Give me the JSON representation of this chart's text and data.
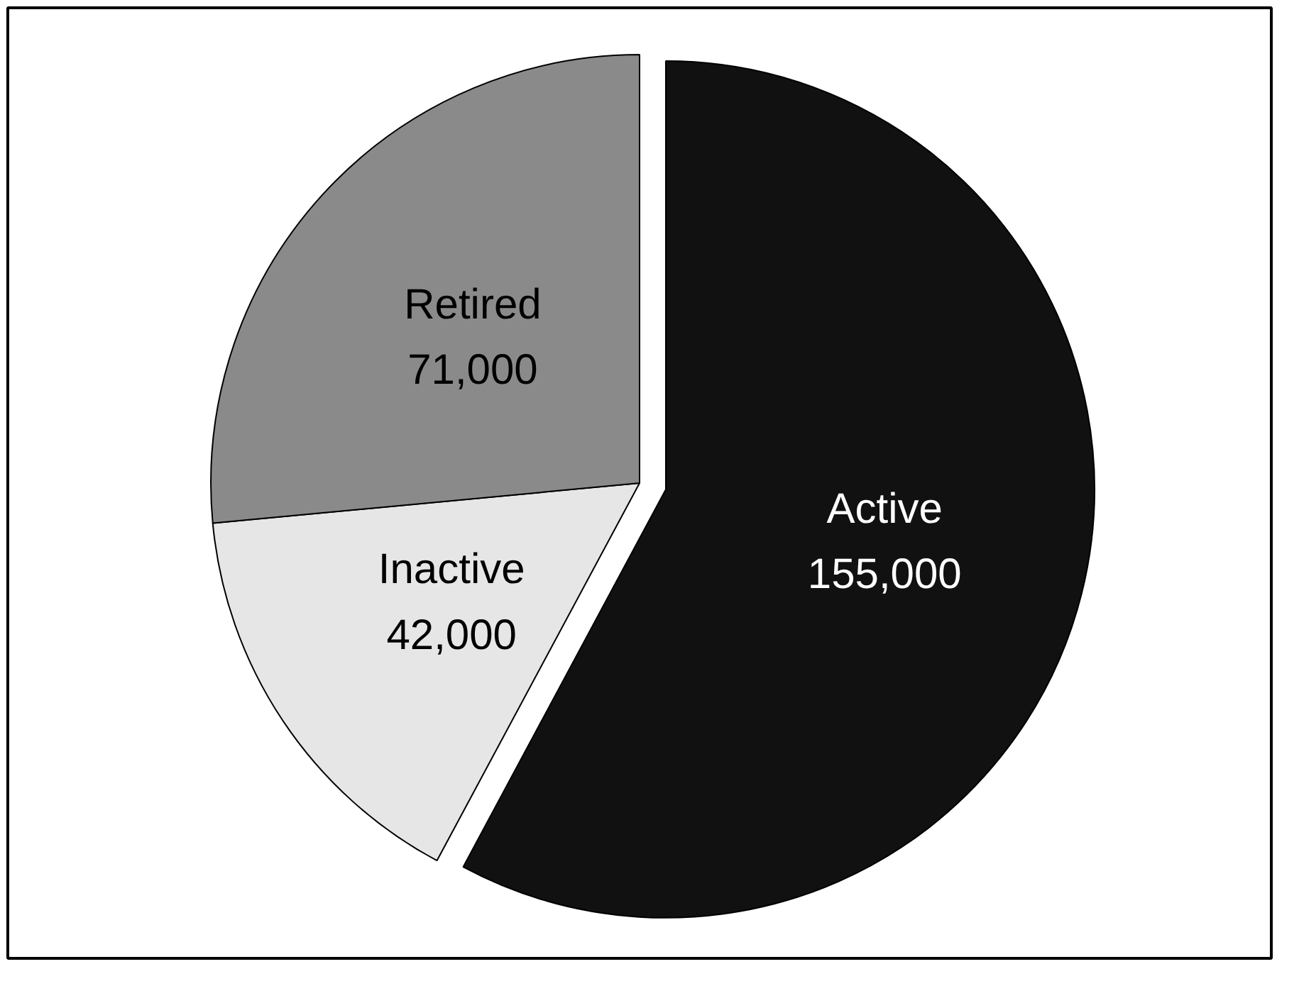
{
  "chart_data": {
    "type": "pie",
    "categories": [
      "Active",
      "Inactive",
      "Retired"
    ],
    "values": [
      155000,
      42000,
      71000
    ],
    "colors": [
      "#111111",
      "#e6e6e6",
      "#8a8a8a"
    ],
    "value_labels": [
      "155,000",
      "42,000",
      "71,000"
    ]
  }
}
